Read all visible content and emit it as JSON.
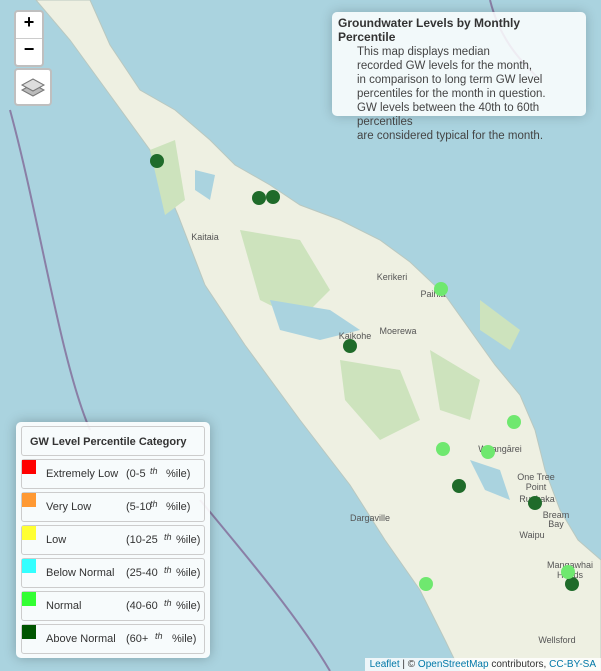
{
  "controls": {
    "zoom_in": "+",
    "zoom_out": "−"
  },
  "info": {
    "title": "Groundwater Levels by Monthly Percentile",
    "lines": [
      "This map displays median",
      "recorded GW levels for the month,",
      "in comparison to long term GW level",
      "percentiles for the month in question.",
      "GW levels between the 40th to 60th percentiles",
      "are considered typical for the month."
    ]
  },
  "legend": {
    "title": "GW Level Percentile Category",
    "items": [
      {
        "label": "Extremely Low",
        "range": "(0-5",
        "ordinal": "th",
        "suffix": "%ile)",
        "color": "#ff0000"
      },
      {
        "label": "Very Low",
        "range": "(5-10",
        "ordinal": "th",
        "suffix": "%ile)",
        "color": "#ff9933"
      },
      {
        "label": "Low",
        "range": "(10-25",
        "ordinal": "th",
        "suffix": "%ile)",
        "color": "#ffff33"
      },
      {
        "label": "Below Normal",
        "range": "(25-40",
        "ordinal": "th",
        "suffix": "%ile)",
        "color": "#33ffff"
      },
      {
        "label": "Normal",
        "range": "(40-60",
        "ordinal": "th",
        "suffix": "%ile)",
        "color": "#33ff33"
      },
      {
        "label": "Above Normal",
        "range": "(60+",
        "ordinal": "th",
        "suffix": "%ile)",
        "color": "#005500"
      }
    ]
  },
  "places": [
    "Kaitaia",
    "Kerikeri",
    "Paihia",
    "Moerewa",
    "Kaikohe",
    "Whangārei",
    "One Tree",
    "Point",
    "Ruakaka",
    "Bream",
    "Bay",
    "Waipu",
    "Dargaville",
    "Mangawhai",
    "Heads",
    "Wellsford"
  ],
  "attribution": {
    "leaflet": "Leaflet",
    "sep": "| ©",
    "osm": "OpenStreetMap",
    "contrib": "contributors,",
    "license": "CC-BY-SA"
  }
}
